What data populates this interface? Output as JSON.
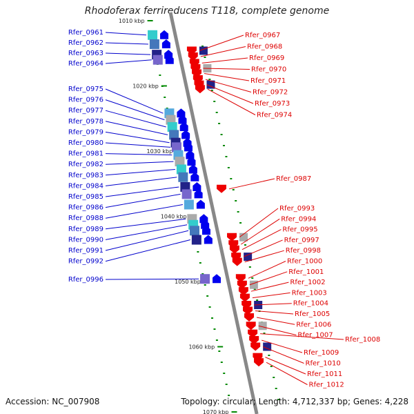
{
  "title": "Rhodoferax ferrireducens T118, complete genome",
  "accession": "Accession: NC_007908",
  "topology": "Topology: circular; Length: 4,712,337 bp; Genes: 4,228",
  "colors": {
    "left_label": "#0000cc",
    "right_label": "#dd0000",
    "forward_gene": "#0000ee",
    "reverse_gene": "#ee0000",
    "backbone": "#888888",
    "tick_mark": "#008800"
  },
  "ticks": [
    {
      "kbp": 1010,
      "label": "1010 kbp"
    },
    {
      "kbp": 1020,
      "label": "1020 kbp"
    },
    {
      "kbp": 1030,
      "label": "1030 kbp"
    },
    {
      "kbp": 1040,
      "label": "1040 kbp"
    },
    {
      "kbp": 1050,
      "label": "1050 kbp"
    },
    {
      "kbp": 1060,
      "label": "1060 kbp"
    },
    {
      "kbp": 1070,
      "label": "1070 kbp"
    }
  ],
  "left_genes": [
    {
      "name": "Rfer_0961",
      "kbp": 1012.2
    },
    {
      "name": "Rfer_0962",
      "kbp": 1013.6
    },
    {
      "name": "Rfer_0963",
      "kbp": 1015.2
    },
    {
      "name": "Rfer_0964",
      "kbp": 1016.0
    },
    {
      "name": "Rfer_0975",
      "kbp": 1024.2
    },
    {
      "name": "Rfer_0976",
      "kbp": 1025.2
    },
    {
      "name": "Rfer_0977",
      "kbp": 1026.3
    },
    {
      "name": "Rfer_0978",
      "kbp": 1027.5
    },
    {
      "name": "Rfer_0979",
      "kbp": 1028.7
    },
    {
      "name": "Rfer_0980",
      "kbp": 1029.4
    },
    {
      "name": "Rfer_0981",
      "kbp": 1030.6
    },
    {
      "name": "Rfer_0982",
      "kbp": 1031.6
    },
    {
      "name": "Rfer_0983",
      "kbp": 1032.8
    },
    {
      "name": "Rfer_0984",
      "kbp": 1034.0
    },
    {
      "name": "Rfer_0985",
      "kbp": 1035.5
    },
    {
      "name": "Rfer_0986",
      "kbp": 1036.6
    },
    {
      "name": "Rfer_0988",
      "kbp": 1038.2
    },
    {
      "name": "Rfer_0989",
      "kbp": 1040.4
    },
    {
      "name": "Rfer_0990",
      "kbp": 1041.3
    },
    {
      "name": "Rfer_0991",
      "kbp": 1042.2
    },
    {
      "name": "Rfer_0992",
      "kbp": 1043.6
    },
    {
      "name": "Rfer_0996",
      "kbp": 1049.6
    }
  ],
  "right_genes": [
    {
      "name": "Rfer_0967",
      "kbp": 1014.6
    },
    {
      "name": "Rfer_0968",
      "kbp": 1015.5
    },
    {
      "name": "Rfer_0969",
      "kbp": 1016.5
    },
    {
      "name": "Rfer_0970",
      "kbp": 1017.3
    },
    {
      "name": "Rfer_0971",
      "kbp": 1018.1
    },
    {
      "name": "Rfer_0972",
      "kbp": 1019.0
    },
    {
      "name": "Rfer_0973",
      "kbp": 1019.8
    },
    {
      "name": "Rfer_0974",
      "kbp": 1020.5
    },
    {
      "name": "Rfer_0987",
      "kbp": 1035.8
    },
    {
      "name": "Rfer_0993",
      "kbp": 1043.2
    },
    {
      "name": "Rfer_0994",
      "kbp": 1044.3
    },
    {
      "name": "Rfer_0995",
      "kbp": 1045.1
    },
    {
      "name": "Rfer_0997",
      "kbp": 1046.2
    },
    {
      "name": "Rfer_0998",
      "kbp": 1047.0
    },
    {
      "name": "Rfer_1000",
      "kbp": 1049.5
    },
    {
      "name": "Rfer_1001",
      "kbp": 1050.5
    },
    {
      "name": "Rfer_1002",
      "kbp": 1051.5
    },
    {
      "name": "Rfer_1003",
      "kbp": 1052.5
    },
    {
      "name": "Rfer_1004",
      "kbp": 1053.6
    },
    {
      "name": "Rfer_1005",
      "kbp": 1054.5
    },
    {
      "name": "Rfer_1006",
      "kbp": 1055.5
    },
    {
      "name": "Rfer_1007",
      "kbp": 1056.8
    },
    {
      "name": "Rfer_1008",
      "kbp": 1058.0
    },
    {
      "name": "Rfer_1009",
      "kbp": 1059.0
    },
    {
      "name": "Rfer_1010",
      "kbp": 1060.0
    },
    {
      "name": "Rfer_1011",
      "kbp": 1061.6
    },
    {
      "name": "Rfer_1012",
      "kbp": 1062.4
    }
  ]
}
